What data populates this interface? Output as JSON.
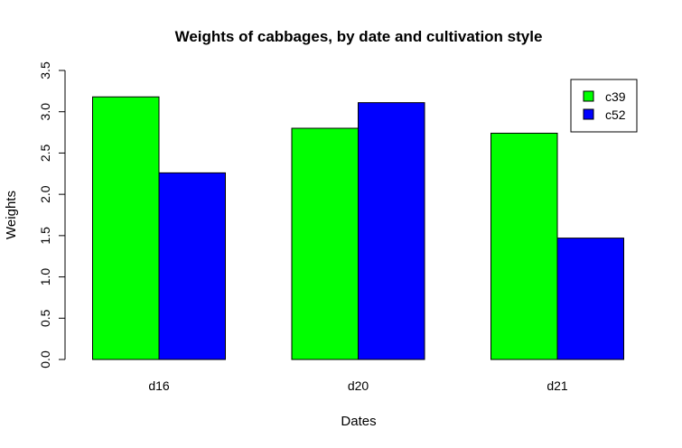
{
  "chart_data": {
    "type": "bar",
    "title": "Weights of cabbages, by date and cultivation style",
    "xlabel": "Dates",
    "ylabel": "Weights",
    "categories": [
      "d16",
      "d20",
      "d21"
    ],
    "series": [
      {
        "name": "c39",
        "color": "#00ff00",
        "values": [
          3.18,
          2.8,
          2.74
        ]
      },
      {
        "name": "c52",
        "color": "#0000ff",
        "values": [
          2.26,
          3.11,
          1.47
        ]
      }
    ],
    "ylim": [
      0,
      3.5
    ],
    "yticks": [
      "0.0",
      "0.5",
      "1.0",
      "1.5",
      "2.0",
      "2.5",
      "3.0",
      "3.5"
    ],
    "grid": false,
    "legend_position": "top-right"
  }
}
